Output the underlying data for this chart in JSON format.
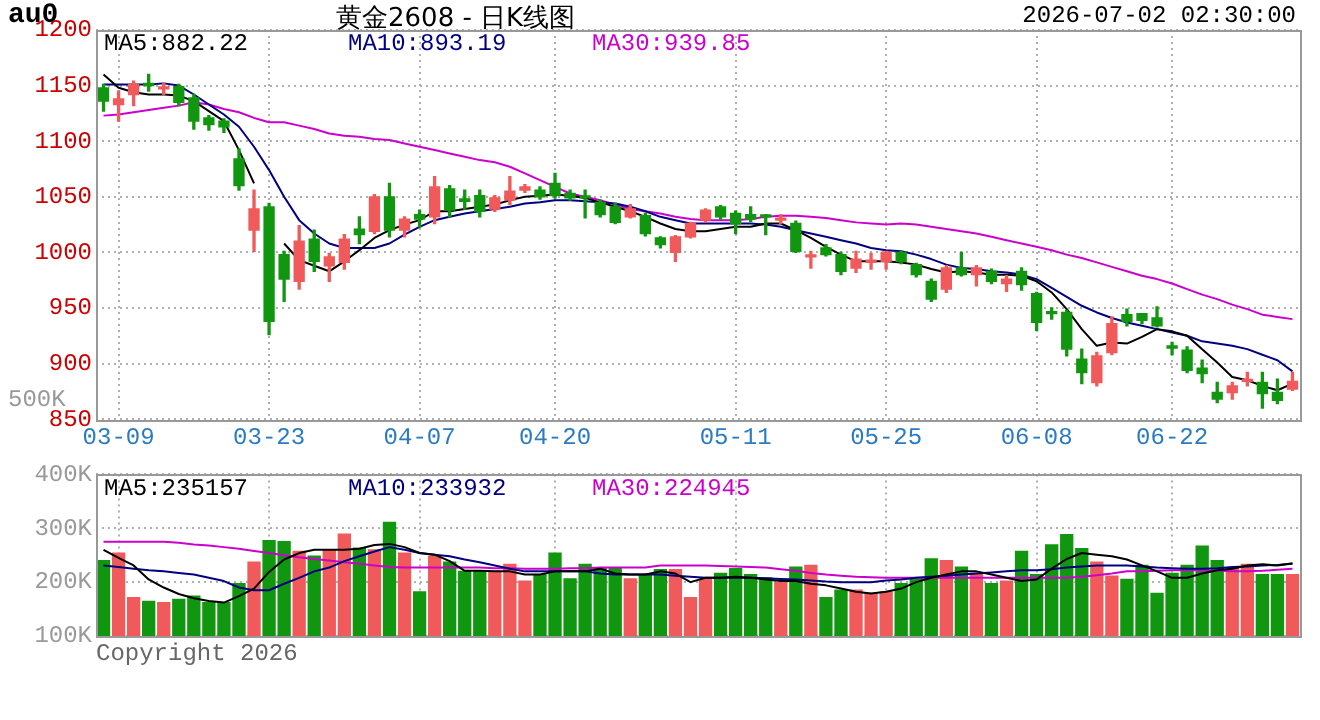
{
  "chart_data": [
    {
      "type": "candlestick",
      "title": "黄金2608 - 日K线图",
      "annotations": [
        "au0",
        "2026-07-02 02:30:00"
      ],
      "categories": [
        null,
        "03-09",
        null,
        null,
        null,
        null,
        null,
        null,
        null,
        null,
        null,
        "03-23",
        null,
        null,
        null,
        null,
        null,
        null,
        null,
        null,
        null,
        "04-07",
        null,
        null,
        null,
        null,
        null,
        null,
        null,
        null,
        "04-20",
        null,
        null,
        null,
        null,
        null,
        null,
        null,
        null,
        null,
        null,
        null,
        "05-11",
        null,
        null,
        null,
        null,
        null,
        null,
        null,
        null,
        null,
        "05-25",
        null,
        null,
        null,
        null,
        null,
        null,
        null,
        null,
        null,
        "06-08",
        null,
        null,
        null,
        null,
        null,
        null,
        null,
        null,
        "06-22",
        null,
        null,
        null,
        null,
        null,
        null,
        null,
        null
      ],
      "ohlc": [
        [
          1148,
          1151,
          1127,
          1136
        ],
        [
          1133,
          1145,
          1118,
          1138
        ],
        [
          1142,
          1154,
          1132,
          1151
        ],
        [
          1152,
          1160,
          1145,
          1150
        ],
        [
          1147,
          1152,
          1142,
          1148
        ],
        [
          1149,
          1151,
          1132,
          1135
        ],
        [
          1139,
          1142,
          1111,
          1118
        ],
        [
          1121,
          1123,
          1110,
          1115
        ],
        [
          1118,
          1120,
          1108,
          1113
        ],
        [
          1084,
          1093,
          1056,
          1060
        ],
        [
          1020,
          1056,
          1001,
          1039
        ],
        [
          1041,
          1044,
          926,
          938
        ],
        [
          998,
          1001,
          956,
          976
        ],
        [
          974,
          1024,
          967,
          1010
        ],
        [
          1012,
          1020,
          983,
          992
        ],
        [
          988,
          999,
          974,
          996
        ],
        [
          991,
          1016,
          985,
          1012
        ],
        [
          1021,
          1032,
          1008,
          1016
        ],
        [
          1019,
          1052,
          1017,
          1050
        ],
        [
          1050,
          1062,
          1014,
          1020
        ],
        [
          1020,
          1032,
          1014,
          1030
        ],
        [
          1034,
          1038,
          1023,
          1030
        ],
        [
          1032,
          1068,
          1026,
          1059
        ],
        [
          1057,
          1060,
          1032,
          1038
        ],
        [
          1048,
          1056,
          1039,
          1046
        ],
        [
          1051,
          1056,
          1032,
          1037
        ],
        [
          1039,
          1051,
          1037,
          1049
        ],
        [
          1047,
          1068,
          1043,
          1055
        ],
        [
          1056,
          1061,
          1054,
          1059
        ],
        [
          1056,
          1059,
          1048,
          1050
        ],
        [
          1062,
          1071,
          1049,
          1051
        ],
        [
          1053,
          1056,
          1047,
          1049
        ],
        [
          1050,
          1056,
          1031,
          1049
        ],
        [
          1045,
          1047,
          1032,
          1034
        ],
        [
          1041,
          1044,
          1026,
          1027
        ],
        [
          1032,
          1043,
          1031,
          1039
        ],
        [
          1033,
          1035,
          1015,
          1017
        ],
        [
          1013,
          1014,
          1004,
          1007
        ],
        [
          1000,
          1015,
          992,
          1014
        ],
        [
          1014,
          1027,
          1013,
          1026
        ],
        [
          1029,
          1039,
          1027,
          1038
        ],
        [
          1041,
          1042,
          1030,
          1032
        ],
        [
          1035,
          1037,
          1017,
          1026
        ],
        [
          1034,
          1041,
          1028,
          1030
        ],
        [
          1033,
          1034,
          1016,
          1032
        ],
        [
          1029,
          1034,
          1026,
          1030
        ],
        [
          1026,
          1028,
          1000,
          1001
        ],
        [
          996,
          1001,
          986,
          997
        ],
        [
          1004,
          1007,
          997,
          998
        ],
        [
          998,
          1000,
          980,
          983
        ],
        [
          986,
          1001,
          982,
          994
        ],
        [
          991,
          999,
          985,
          993
        ],
        [
          992,
          1001,
          985,
          1000
        ],
        [
          1000,
          1001,
          990,
          992
        ],
        [
          989,
          990,
          978,
          980
        ],
        [
          974,
          976,
          956,
          958
        ],
        [
          967,
          988,
          964,
          986
        ],
        [
          986,
          1000,
          979,
          980
        ],
        [
          980,
          988,
          970,
          986
        ],
        [
          983,
          985,
          972,
          974
        ],
        [
          972,
          979,
          965,
          976
        ],
        [
          983,
          986,
          966,
          971
        ],
        [
          963,
          964,
          930,
          937
        ],
        [
          946,
          950,
          940,
          945
        ],
        [
          946,
          948,
          907,
          913
        ],
        [
          904,
          913,
          882,
          892
        ],
        [
          883,
          910,
          880,
          907
        ],
        [
          910,
          942,
          908,
          936
        ],
        [
          944,
          949,
          934,
          938
        ],
        [
          945,
          945,
          936,
          939
        ],
        [
          941,
          951,
          933,
          934
        ],
        [
          915,
          919,
          908,
          914
        ],
        [
          912,
          915,
          892,
          894
        ],
        [
          896,
          903,
          883,
          891
        ],
        [
          874,
          883,
          865,
          868
        ],
        [
          874,
          883,
          868,
          880
        ],
        [
          884,
          892,
          880,
          885
        ],
        [
          883,
          892,
          860,
          873
        ],
        [
          874,
          886,
          864,
          867
        ],
        [
          877,
          892,
          876,
          884
        ]
      ],
      "colors": [
        "#10960f",
        "#f05a5a",
        "#f05a5a",
        "#10960f",
        "#f05a5a",
        "#10960f",
        "#10960f",
        "#10960f",
        "#10960f",
        "#10960f",
        "#f05a5a",
        "#10960f",
        "#10960f",
        "#f05a5a",
        "#10960f",
        "#f05a5a",
        "#f05a5a",
        "#10960f",
        "#f05a5a",
        "#10960f",
        "#f05a5a",
        "#10960f",
        "#f05a5a",
        "#10960f",
        "#10960f",
        "#10960f",
        "#f05a5a",
        "#f05a5a",
        "#f05a5a",
        "#10960f",
        "#10960f",
        "#10960f",
        "#10960f",
        "#10960f",
        "#10960f",
        "#f05a5a",
        "#10960f",
        "#10960f",
        "#f05a5a",
        "#f05a5a",
        "#f05a5a",
        "#10960f",
        "#10960f",
        "#10960f",
        "#10960f",
        "#f05a5a",
        "#10960f",
        "#f05a5a",
        "#10960f",
        "#10960f",
        "#f05a5a",
        "#f05a5a",
        "#f05a5a",
        "#10960f",
        "#10960f",
        "#10960f",
        "#f05a5a",
        "#10960f",
        "#f05a5a",
        "#10960f",
        "#f05a5a",
        "#10960f",
        "#10960f",
        "#10960f",
        "#10960f",
        "#10960f",
        "#f05a5a",
        "#f05a5a",
        "#10960f",
        "#10960f",
        "#10960f",
        "#10960f",
        "#10960f",
        "#10960f",
        "#10960f",
        "#f05a5a",
        "#f05a5a",
        "#10960f",
        "#10960f",
        "#f05a5a"
      ],
      "series": [
        {
          "type": "line",
          "name": "MA5:882.22",
          "color": "#000000",
          "values": [
            1160,
            1148,
            1144,
            1142,
            1142,
            1141,
            1136,
            1127,
            1118,
            1092,
            1062,
            null,
            1008,
            993,
            988,
            983,
            992,
            1002,
            1013,
            1020,
            1025,
            1029,
            1037,
            1037,
            1039,
            1041,
            1043,
            1047,
            1050,
            1051,
            1052,
            1051,
            1049,
            1045,
            1041,
            1037,
            1032,
            1026,
            1021,
            1019,
            1019,
            1021,
            1023,
            1023,
            1026,
            1026,
            1020,
            1013,
            1005,
            998,
            992,
            992,
            992,
            991,
            989,
            985,
            982,
            983,
            982,
            980,
            980,
            979,
            974,
            964,
            949,
            931,
            916,
            919,
            918,
            924,
            931,
            929,
            925,
            913,
            901,
            888,
            885,
            880,
            876,
            882
          ]
        },
        {
          "type": "line",
          "name": "MA10:893.19",
          "color": "#000080",
          "values": [
            1151,
            1151,
            1151,
            1151,
            1152,
            1150,
            1142,
            1133,
            1124,
            1113,
            1095,
            1074,
            1050,
            1029,
            1017,
            1008,
            1004,
            1004,
            1004,
            1008,
            1016,
            1023,
            1029,
            1032,
            1035,
            1037,
            1039,
            1041,
            1044,
            1045,
            1047,
            1047,
            1046,
            1045,
            1044,
            1041,
            1037,
            1032,
            1029,
            1026,
            1026,
            1026,
            1026,
            1026,
            1025,
            1023,
            1020,
            1017,
            1014,
            1011,
            1008,
            1004,
            1002,
            1001,
            998,
            994,
            989,
            986,
            985,
            983,
            982,
            980,
            976,
            968,
            960,
            952,
            946,
            941,
            937,
            934,
            931,
            928,
            925,
            920,
            918,
            916,
            913,
            908,
            903,
            893
          ]
        },
        {
          "type": "line",
          "name": "MA30:939.85",
          "color": "#cc00cc",
          "values": [
            1123,
            1124,
            1126,
            1128,
            1130,
            1132,
            1135,
            1133,
            1129,
            1126,
            1121,
            1117,
            1117,
            1114,
            1111,
            1107,
            1105,
            1104,
            1102,
            1101,
            1098,
            1095,
            1092,
            1089,
            1086,
            1083,
            1081,
            1077,
            1071,
            1065,
            1059,
            1053,
            1050,
            1047,
            1043,
            1039,
            1037,
            1035,
            1032,
            1030,
            1029,
            1029,
            1029,
            1030,
            1032,
            1033,
            1033,
            1032,
            1031,
            1029,
            1027,
            1026,
            1025,
            1026,
            1025,
            1023,
            1021,
            1019,
            1017,
            1014,
            1011,
            1008,
            1005,
            1002,
            998,
            995,
            991,
            987,
            983,
            979,
            976,
            972,
            967,
            962,
            958,
            953,
            949,
            944,
            942,
            940
          ]
        }
      ],
      "ylim": [
        850,
        1200
      ],
      "yticks": [
        850,
        900,
        950,
        1000,
        1050,
        1100,
        1150,
        1200
      ],
      "grid": true,
      "legend": "top left",
      "marker": "none"
    },
    {
      "type": "bar",
      "annotations": [
        "500K",
        "Copyright 2026"
      ],
      "categories": [
        null,
        null,
        null,
        null,
        null,
        null,
        null,
        null,
        null,
        null,
        null,
        null,
        null,
        null,
        null,
        null,
        null,
        null,
        null,
        null,
        null,
        null,
        null,
        null,
        null,
        null,
        null,
        null,
        null,
        null,
        null,
        null,
        null,
        null,
        null,
        null,
        null,
        null,
        null,
        null,
        null,
        null,
        null,
        null,
        null,
        null,
        null,
        null,
        null,
        null,
        null,
        null,
        null,
        null,
        null,
        null,
        null,
        null,
        null,
        null,
        null,
        null,
        null,
        null,
        null,
        null,
        null,
        null,
        null,
        null,
        null,
        null,
        null,
        null,
        null,
        null,
        null,
        null,
        null,
        null
      ],
      "series": [
        {
          "colors": [
            "#10960f",
            "#f05a5a",
            "#f05a5a",
            "#10960f",
            "#f05a5a",
            "#10960f",
            "#10960f",
            "#10960f",
            "#10960f",
            "#10960f",
            "#f05a5a",
            "#10960f",
            "#10960f",
            "#f05a5a",
            "#10960f",
            "#f05a5a",
            "#f05a5a",
            "#10960f",
            "#f05a5a",
            "#10960f",
            "#f05a5a",
            "#10960f",
            "#f05a5a",
            "#10960f",
            "#10960f",
            "#10960f",
            "#f05a5a",
            "#f05a5a",
            "#f05a5a",
            "#10960f",
            "#10960f",
            "#10960f",
            "#10960f",
            "#10960f",
            "#10960f",
            "#f05a5a",
            "#10960f",
            "#10960f",
            "#f05a5a",
            "#f05a5a",
            "#f05a5a",
            "#10960f",
            "#10960f",
            "#10960f",
            "#10960f",
            "#f05a5a",
            "#10960f",
            "#f05a5a",
            "#10960f",
            "#10960f",
            "#f05a5a",
            "#f05a5a",
            "#f05a5a",
            "#10960f",
            "#10960f",
            "#10960f",
            "#f05a5a",
            "#10960f",
            "#f05a5a",
            "#10960f",
            "#f05a5a",
            "#10960f",
            "#10960f",
            "#10960f",
            "#10960f",
            "#10960f",
            "#f05a5a",
            "#f05a5a",
            "#10960f",
            "#10960f",
            "#10960f",
            "#10960f",
            "#10960f",
            "#10960f",
            "#10960f",
            "#f05a5a",
            "#f05a5a",
            "#10960f",
            "#10960f",
            "#f05a5a"
          ],
          "values": [
            240,
            254,
            171,
            164,
            162,
            168,
            174,
            162,
            162,
            197,
            237,
            277,
            275,
            257,
            248,
            260,
            289,
            263,
            260,
            311,
            254,
            182,
            248,
            237,
            220,
            220,
            220,
            233,
            202,
            214,
            254,
            206,
            233,
            227,
            225,
            206,
            214,
            223,
            223,
            171,
            205,
            216,
            225,
            214,
            208,
            199,
            228,
            231,
            171,
            185,
            185,
            179,
            182,
            197,
            205,
            243,
            240,
            228,
            216,
            197,
            202,
            257,
            214,
            269,
            288,
            262,
            237,
            211,
            205,
            231,
            179,
            216,
            231,
            267,
            240,
            225,
            233,
            214,
            214,
            214
          ]
        },
        {
          "type": "line",
          "name": "MA5:235157",
          "color": "#000000",
          "values": [
            260,
            245,
            231,
            205,
            190,
            178,
            170,
            165,
            162,
            174,
            188,
            219,
            242,
            254,
            260,
            260,
            260,
            262,
            269,
            271,
            265,
            254,
            251,
            239,
            221,
            221,
            220,
            220,
            214,
            214,
            220,
            220,
            220,
            225,
            216,
            214,
            214,
            220,
            216,
            200,
            208,
            208,
            210,
            208,
            205,
            202,
            202,
            197,
            194,
            188,
            182,
            179,
            182,
            188,
            200,
            208,
            214,
            220,
            220,
            214,
            208,
            202,
            205,
            225,
            243,
            254,
            251,
            248,
            242,
            231,
            220,
            208,
            208,
            216,
            222,
            225,
            231,
            233,
            231,
            235
          ]
        },
        {
          "type": "line",
          "name": "MA10:233932",
          "color": "#000080",
          "values": [
            231,
            228,
            225,
            222,
            220,
            217,
            214,
            208,
            202,
            190,
            185,
            185,
            197,
            208,
            220,
            227,
            239,
            248,
            257,
            265,
            260,
            254,
            251,
            248,
            242,
            237,
            231,
            225,
            220,
            220,
            220,
            220,
            220,
            216,
            214,
            214,
            214,
            214,
            212,
            210,
            208,
            208,
            208,
            208,
            207,
            206,
            205,
            203,
            201,
            200,
            200,
            200,
            203,
            205,
            208,
            210,
            212,
            214,
            216,
            218,
            220,
            222,
            222,
            224,
            227,
            229,
            231,
            231,
            231,
            229,
            227,
            226,
            225,
            225,
            226,
            228,
            229,
            231,
            232,
            234
          ]
        },
        {
          "type": "line",
          "name": "MA30:224945",
          "color": "#cc00cc",
          "values": [
            275,
            275,
            275,
            275,
            275,
            273,
            270,
            268,
            265,
            262,
            258,
            254,
            250,
            246,
            243,
            240,
            237,
            234,
            231,
            228,
            227,
            227,
            227,
            227,
            227,
            227,
            226,
            226,
            225,
            225,
            225,
            226,
            226,
            227,
            227,
            227,
            227,
            231,
            231,
            231,
            231,
            230,
            229,
            228,
            227,
            224,
            221,
            217,
            214,
            212,
            210,
            209,
            208,
            208,
            208,
            208,
            208,
            208,
            208,
            208,
            208,
            208,
            208,
            208,
            208,
            210,
            213,
            216,
            220,
            220,
            221,
            222,
            222,
            222,
            221,
            220,
            220,
            221,
            223,
            225
          ]
        }
      ],
      "ylim": [
        100,
        400
      ],
      "yticks": [
        {
          "value": 100,
          "label": "100K"
        },
        {
          "value": 200,
          "label": "200K"
        },
        {
          "value": 300,
          "label": "300K"
        },
        {
          "value": 400,
          "label": "400K"
        }
      ],
      "grid": true,
      "legend": "top left",
      "marker": "none",
      "tick_labels": "y"
    }
  ]
}
